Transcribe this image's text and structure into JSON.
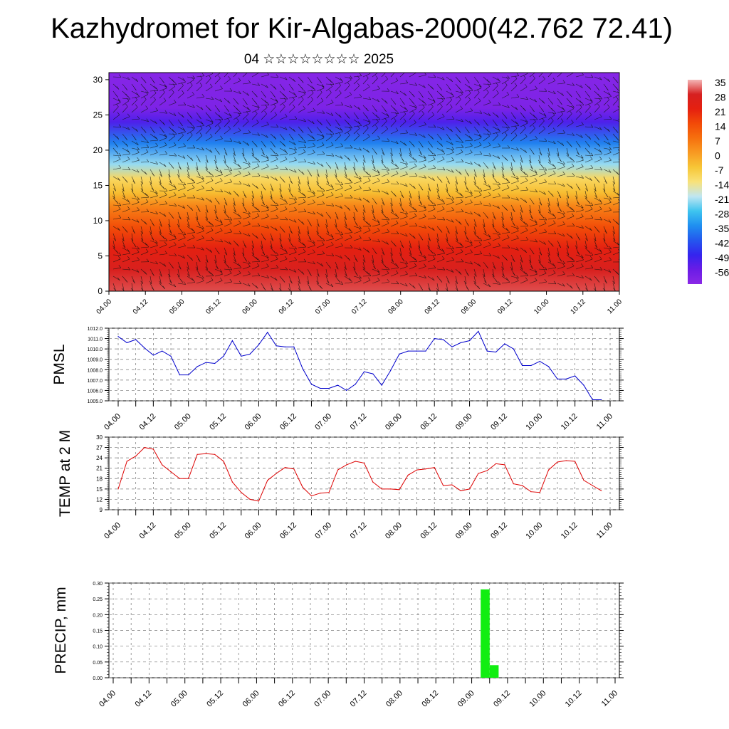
{
  "title": "Kazhydromet for Kir-Algabas-2000(42.762 72.41)",
  "subtitle": "04 ☆☆☆☆☆☆☆☆ 2025",
  "time_ticks": [
    "04.00",
    "04.12",
    "05.00",
    "05.12",
    "06.00",
    "06.12",
    "07.00",
    "07.12",
    "08.00",
    "08.12",
    "09.00",
    "09.12",
    "10.00",
    "10.12",
    "11.00"
  ],
  "chart_data": [
    {
      "type": "heatmap",
      "title": "",
      "xlabel": "",
      "ylabel": "",
      "x": [
        "04.00",
        "04.12",
        "05.00",
        "05.12",
        "06.00",
        "06.12",
        "07.00",
        "07.12",
        "08.00",
        "08.12",
        "09.00",
        "09.12",
        "10.00",
        "10.12",
        "11.00"
      ],
      "ylim": [
        0,
        31
      ],
      "yticks": [
        0,
        5,
        10,
        15,
        20,
        25,
        30
      ],
      "vectors": "wind barbs overlaid",
      "colorbar": {
        "labels": [
          "35",
          "28",
          "21",
          "14",
          "7",
          "0",
          "-7",
          "-14",
          "-21",
          "-28",
          "-35",
          "-42",
          "-49",
          "-56"
        ],
        "colors": [
          "#f4b6b6",
          "#d62020",
          "#e52010",
          "#f24a08",
          "#f6700e",
          "#f89a22",
          "#f7c636",
          "#f8e27a",
          "#bfe6f2",
          "#3ec4ef",
          "#1f8ff0",
          "#2457ee",
          "#3424ee",
          "#6a1ce6",
          "#8a28e6"
        ]
      },
      "profile": [
        {
          "level": 0,
          "value": 33
        },
        {
          "level": 3,
          "value": 30
        },
        {
          "level": 6,
          "value": 24
        },
        {
          "level": 9,
          "value": 16
        },
        {
          "level": 12,
          "value": 6
        },
        {
          "level": 14,
          "value": -4
        },
        {
          "level": 16,
          "value": -10
        },
        {
          "level": 18,
          "value": -22
        },
        {
          "level": 21,
          "value": -36
        },
        {
          "level": 24,
          "value": -52
        },
        {
          "level": 26,
          "value": -60
        },
        {
          "level": 31,
          "value": -62
        }
      ]
    },
    {
      "type": "line",
      "title": "",
      "ylabel": "PMSL",
      "ylim": [
        1005.0,
        1012.0
      ],
      "yticks": [
        "1005.0",
        "1006.0",
        "1007.0",
        "1008.0",
        "1009.0",
        "1010.0",
        "1011.0",
        "1012.0"
      ],
      "series": [
        {
          "color": "#0000cc",
          "x": [
            0,
            3,
            6,
            9,
            12,
            15,
            18,
            21,
            24,
            27,
            30,
            33,
            36,
            39,
            42,
            45,
            48,
            51,
            54,
            57,
            60,
            63,
            66,
            69,
            72,
            75,
            78,
            81,
            84,
            87,
            90,
            93,
            96,
            99,
            102,
            105,
            108,
            111,
            114,
            117,
            120,
            123,
            126,
            129,
            132,
            135,
            138,
            141,
            144,
            147,
            150,
            153,
            156,
            159,
            162,
            165
          ],
          "values": [
            1011.2,
            1010.6,
            1010.9,
            1010.1,
            1009.4,
            1009.8,
            1009.3,
            1007.5,
            1007.5,
            1008.3,
            1008.7,
            1008.6,
            1009.3,
            1010.8,
            1009.3,
            1009.5,
            1010.4,
            1011.6,
            1010.3,
            1010.2,
            1010.2,
            1008.1,
            1006.6,
            1006.2,
            1006.2,
            1006.5,
            1006.0,
            1006.6,
            1007.8,
            1007.6,
            1006.5,
            1007.9,
            1009.5,
            1009.8,
            1009.8,
            1009.8,
            1011.0,
            1010.9,
            1010.2,
            1010.6,
            1010.8,
            1011.7,
            1009.8,
            1009.7,
            1010.5,
            1010.0,
            1008.4,
            1008.4,
            1008.8,
            1008.3,
            1007.1,
            1007.1,
            1007.4,
            1006.5,
            1005.1,
            1005.1
          ]
        }
      ]
    },
    {
      "type": "line",
      "title": "",
      "ylabel": "TEMP at 2 M",
      "ylim": [
        9,
        30
      ],
      "yticks": [
        "9",
        "12",
        "15",
        "18",
        "21",
        "24",
        "27",
        "30"
      ],
      "series": [
        {
          "color": "#dd0000",
          "x": [
            0,
            3,
            6,
            9,
            12,
            15,
            18,
            21,
            24,
            27,
            30,
            33,
            36,
            39,
            42,
            45,
            48,
            51,
            54,
            57,
            60,
            63,
            66,
            69,
            72,
            75,
            78,
            81,
            84,
            87,
            90,
            93,
            96,
            99,
            102,
            105,
            108,
            111,
            114,
            117,
            120,
            123,
            126,
            129,
            132,
            135,
            138,
            141,
            144,
            147,
            150,
            153,
            156,
            159,
            162,
            165
          ],
          "values": [
            15.0,
            23.0,
            24.5,
            27.0,
            26.5,
            22.0,
            20.0,
            18.0,
            18.0,
            25.0,
            25.2,
            25.0,
            23.0,
            17.0,
            14.0,
            12.0,
            11.5,
            17.5,
            19.5,
            21.2,
            20.8,
            15.5,
            13.0,
            13.8,
            14.0,
            20.5,
            22.0,
            23.0,
            22.5,
            17.0,
            15.0,
            15.0,
            14.8,
            19.0,
            20.5,
            20.8,
            21.2,
            16.0,
            16.2,
            14.5,
            15.0,
            19.5,
            20.3,
            22.3,
            22.0,
            16.5,
            16.0,
            14.2,
            14.0,
            20.5,
            22.8,
            23.2,
            23.0,
            17.5,
            16.0,
            14.5
          ]
        }
      ]
    },
    {
      "type": "bar",
      "title": "",
      "ylabel": "PRECIP, mm",
      "ylim": [
        0,
        0.3
      ],
      "yticks": [
        "0.00",
        "0.05",
        "0.10",
        "0.15",
        "0.20",
        "0.25",
        "0.30"
      ],
      "color": "#11ee11",
      "bars": [
        {
          "x": 123,
          "value": 0.28
        },
        {
          "x": 126,
          "value": 0.04
        }
      ]
    }
  ]
}
